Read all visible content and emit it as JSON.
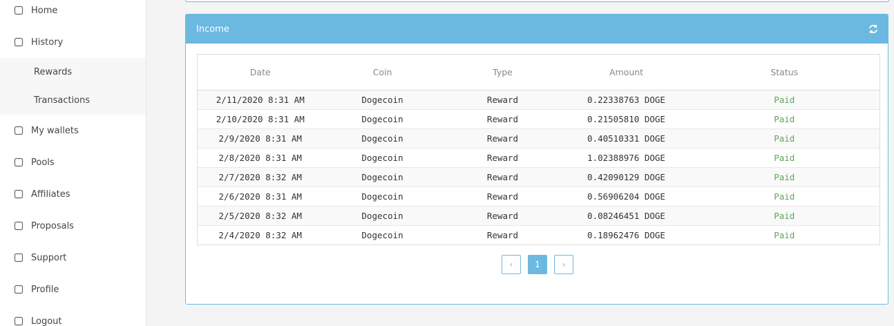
{
  "sidebar": {
    "items": [
      {
        "label": "Home"
      },
      {
        "label": "History",
        "subitems": [
          "Rewards",
          "Transactions"
        ]
      },
      {
        "label": "My wallets"
      },
      {
        "label": "Pools"
      },
      {
        "label": "Affiliates"
      },
      {
        "label": "Proposals"
      },
      {
        "label": "Support"
      },
      {
        "label": "Profile"
      },
      {
        "label": "Logout"
      }
    ]
  },
  "panel": {
    "title": "Income",
    "table": {
      "columns": [
        "Date",
        "Coin",
        "Type",
        "Amount",
        "Status"
      ],
      "rows": [
        [
          "2/11/2020 8:31 AM",
          "Dogecoin",
          "Reward",
          "0.22338763 DOGE",
          "Paid"
        ],
        [
          "2/10/2020 8:31 AM",
          "Dogecoin",
          "Reward",
          "0.21505810 DOGE",
          "Paid"
        ],
        [
          "2/9/2020 8:31 AM",
          "Dogecoin",
          "Reward",
          "0.40510331 DOGE",
          "Paid"
        ],
        [
          "2/8/2020 8:31 AM",
          "Dogecoin",
          "Reward",
          "1.02388976 DOGE",
          "Paid"
        ],
        [
          "2/7/2020 8:32 AM",
          "Dogecoin",
          "Reward",
          "0.42090129 DOGE",
          "Paid"
        ],
        [
          "2/6/2020 8:31 AM",
          "Dogecoin",
          "Reward",
          "0.56906204 DOGE",
          "Paid"
        ],
        [
          "2/5/2020 8:32 AM",
          "Dogecoin",
          "Reward",
          "0.08246451 DOGE",
          "Paid"
        ],
        [
          "2/4/2020 8:32 AM",
          "Dogecoin",
          "Reward",
          "0.18962476 DOGE",
          "Paid"
        ]
      ]
    },
    "pagination": [
      "‹",
      "1",
      "›"
    ]
  }
}
